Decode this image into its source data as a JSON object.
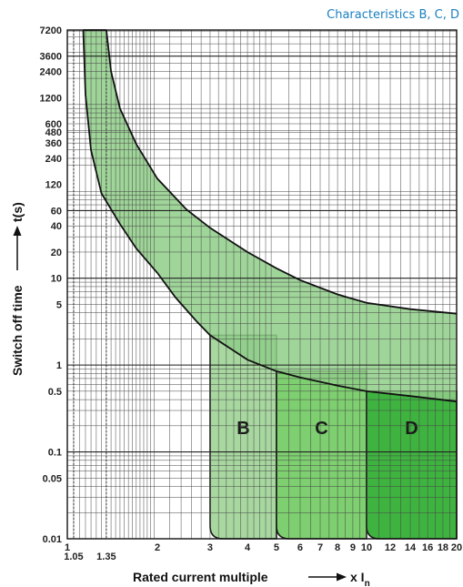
{
  "chart_data": {
    "type": "area",
    "title": "Characteristics B, C, D",
    "xlabel": "Rated current multiple",
    "xlabel_suffix": "x I",
    "xlabel_subscript": "n",
    "ylabel": "Switch off time",
    "ylabel_unit": "t(s)",
    "x_scale": "log",
    "y_scale": "log",
    "xlim": [
      1,
      20
    ],
    "ylim": [
      0.01,
      7200
    ],
    "grid": true,
    "x_ticks": [
      {
        "value": 1,
        "label": "1"
      },
      {
        "value": 1.05,
        "label": "1.05"
      },
      {
        "value": 1.35,
        "label": "1.35"
      },
      {
        "value": 2,
        "label": "2"
      },
      {
        "value": 3,
        "label": "3"
      },
      {
        "value": 4,
        "label": "4"
      },
      {
        "value": 5,
        "label": "5"
      },
      {
        "value": 6,
        "label": "6"
      },
      {
        "value": 7,
        "label": "7"
      },
      {
        "value": 8,
        "label": "8"
      },
      {
        "value": 9,
        "label": "9"
      },
      {
        "value": 10,
        "label": "10"
      },
      {
        "value": 12,
        "label": "12"
      },
      {
        "value": 14,
        "label": "14"
      },
      {
        "value": 16,
        "label": "16"
      },
      {
        "value": 18,
        "label": "18"
      },
      {
        "value": 20,
        "label": "20"
      }
    ],
    "y_ticks": [
      {
        "value": 7200,
        "label": "7200"
      },
      {
        "value": 3600,
        "label": "3600"
      },
      {
        "value": 2400,
        "label": "2400"
      },
      {
        "value": 1200,
        "label": "1200"
      },
      {
        "value": 600,
        "label": "600"
      },
      {
        "value": 480,
        "label": "480"
      },
      {
        "value": 360,
        "label": "360"
      },
      {
        "value": 240,
        "label": "240"
      },
      {
        "value": 120,
        "label": "120"
      },
      {
        "value": 60,
        "label": "60"
      },
      {
        "value": 40,
        "label": "40"
      },
      {
        "value": 20,
        "label": "20"
      },
      {
        "value": 10,
        "label": "10"
      },
      {
        "value": 5,
        "label": "5"
      },
      {
        "value": 1,
        "label": "1"
      },
      {
        "value": 0.5,
        "label": "0.5"
      },
      {
        "value": 0.1,
        "label": "0.1"
      },
      {
        "value": 0.05,
        "label": "0.05"
      },
      {
        "value": 0.01,
        "label": "0.01"
      }
    ],
    "thermal_band": {
      "upper_curve": [
        [
          1.35,
          7200
        ],
        [
          1.4,
          2400
        ],
        [
          1.5,
          900
        ],
        [
          1.7,
          350
        ],
        [
          2,
          140
        ],
        [
          2.5,
          62
        ],
        [
          3,
          38
        ],
        [
          4,
          20
        ],
        [
          5,
          13
        ],
        [
          6,
          9.5
        ],
        [
          8,
          6.5
        ],
        [
          10,
          5.2
        ],
        [
          14,
          4.4
        ],
        [
          20,
          3.9
        ]
      ],
      "lower_curve": [
        [
          1.13,
          7200
        ],
        [
          1.15,
          1300
        ],
        [
          1.2,
          300
        ],
        [
          1.3,
          95
        ],
        [
          1.5,
          42
        ],
        [
          1.7,
          22
        ],
        [
          2,
          11.5
        ],
        [
          2.3,
          6
        ],
        [
          2.7,
          3.2
        ],
        [
          3,
          2.2
        ],
        [
          4,
          1.15
        ],
        [
          5,
          0.85
        ],
        [
          6,
          0.72
        ],
        [
          8,
          0.58
        ],
        [
          10,
          0.5
        ],
        [
          14,
          0.44
        ],
        [
          20,
          0.38
        ]
      ]
    },
    "magnetic_regions": [
      {
        "label": "B",
        "x_from": 3,
        "x_to": 5,
        "color": "#a8d8a0"
      },
      {
        "label": "C",
        "x_from": 5,
        "x_to": 10,
        "color": "#7ecf70"
      },
      {
        "label": "D",
        "x_from": 10,
        "x_to": 20,
        "color": "#3fb340"
      }
    ],
    "band_color": "#8fce88"
  }
}
